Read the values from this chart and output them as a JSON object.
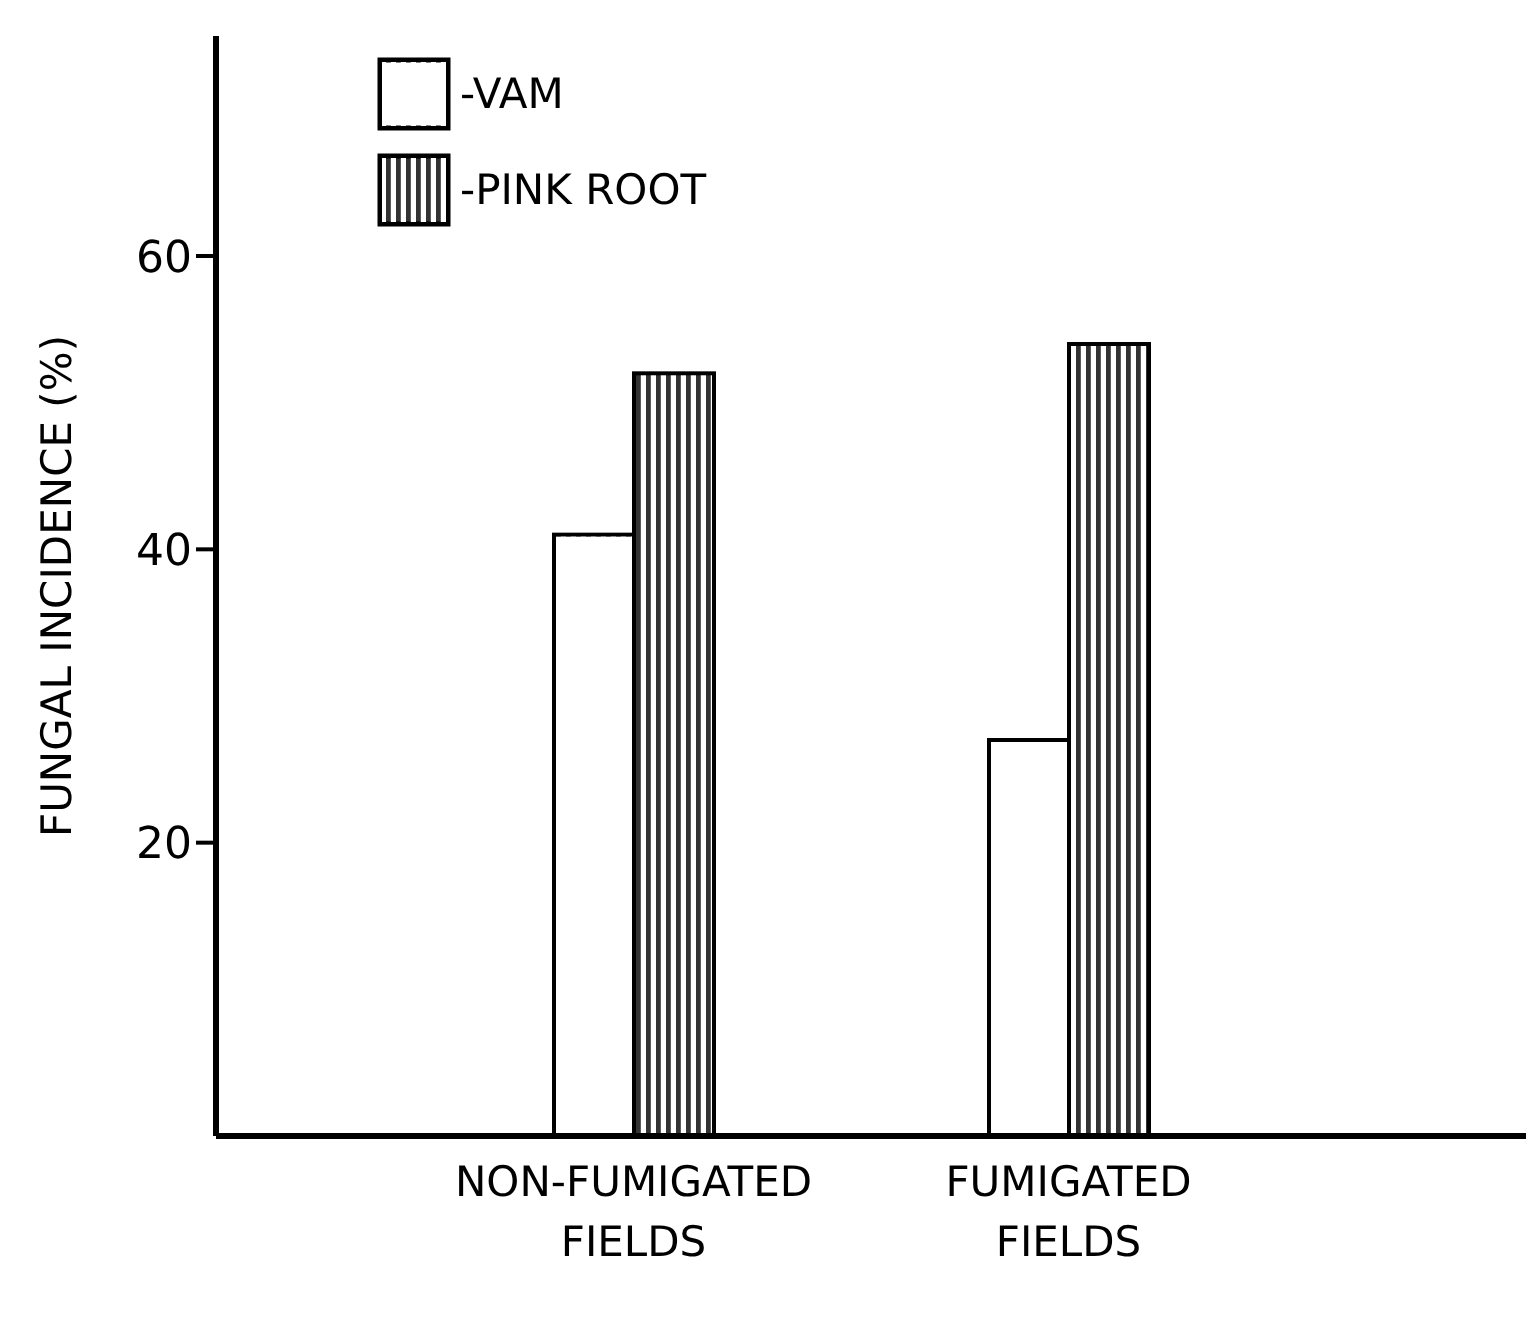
{
  "chart_data": {
    "type": "bar",
    "ylabel": "FUNGAL INCIDENCE (%)",
    "categories": [
      "NON-FUMIGATED FIELDS",
      "FUMIGATED FIELDS"
    ],
    "series": [
      {
        "name": "-VAM",
        "color": "#ffffff",
        "values": [
          41,
          27
        ]
      },
      {
        "name": "-PINK ROOT",
        "color": "#333333",
        "values": [
          52,
          54
        ]
      }
    ],
    "ylim": [
      0,
      75
    ],
    "yticks": [
      20,
      40,
      60
    ],
    "grid": false,
    "legend": "top left"
  }
}
